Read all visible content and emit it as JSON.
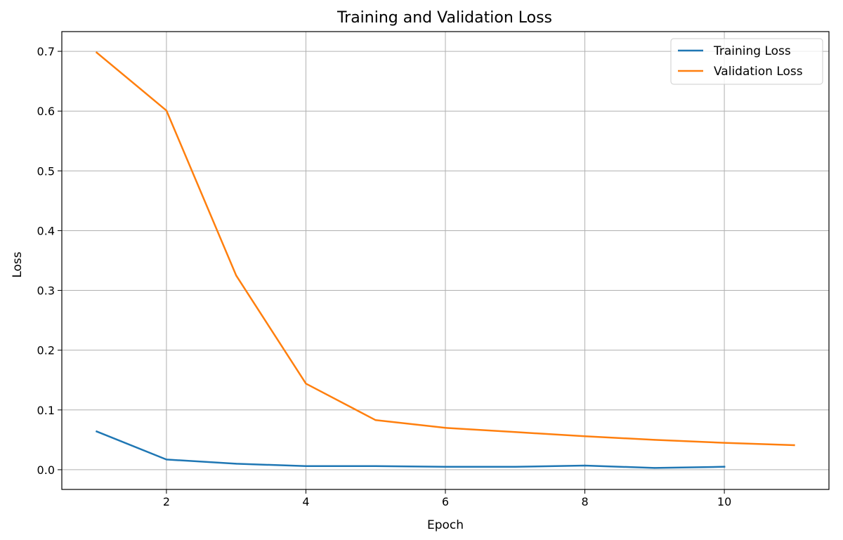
{
  "chart_data": {
    "type": "line",
    "title": "Training and Validation Loss",
    "xlabel": "Epoch",
    "ylabel": "Loss",
    "xlim": [
      0.5,
      11.5
    ],
    "ylim": [
      -0.033,
      0.733
    ],
    "grid": true,
    "legend_position": "top-right",
    "xticks": [
      2,
      4,
      6,
      8,
      10
    ],
    "yticks": [
      0.0,
      0.1,
      0.2,
      0.3,
      0.4,
      0.5,
      0.6,
      0.7
    ],
    "series": [
      {
        "name": "Training Loss",
        "color": "#1f77b4",
        "x": [
          1,
          2,
          3,
          4,
          5,
          6,
          7,
          8,
          9,
          10
        ],
        "values": [
          0.064,
          0.017,
          0.01,
          0.006,
          0.006,
          0.005,
          0.005,
          0.007,
          0.003,
          0.005
        ]
      },
      {
        "name": "Validation Loss",
        "color": "#ff7f0e",
        "x": [
          1,
          2,
          3,
          4,
          5,
          6,
          7,
          8,
          9,
          10,
          11
        ],
        "values": [
          0.698,
          0.601,
          0.325,
          0.144,
          0.083,
          0.07,
          0.063,
          0.056,
          0.05,
          0.045,
          0.041
        ]
      }
    ]
  }
}
